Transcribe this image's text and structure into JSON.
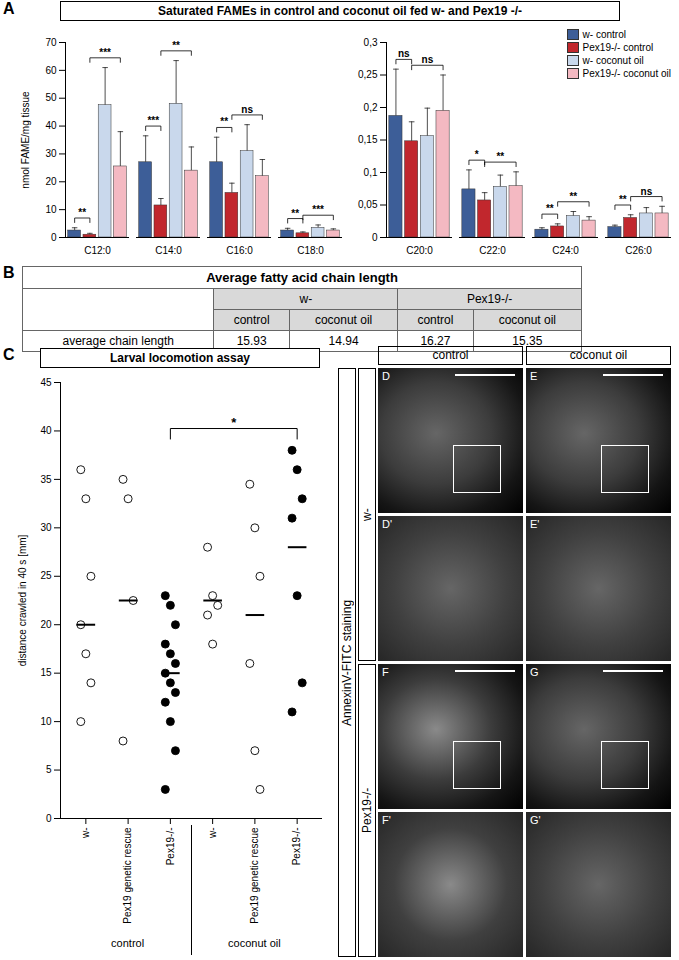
{
  "chart_data": [
    {
      "panel": "A",
      "type": "bar",
      "title": "Saturated FAMEs in control and coconut oil fed w- and Pex19 -/-",
      "ylabel": "nmol FAME/mg tissue",
      "categories": [
        "C12:0",
        "C14:0",
        "C16:0",
        "C18:0"
      ],
      "series": [
        {
          "name": "w- control",
          "color": "#3d5e98",
          "values": [
            2.5,
            27,
            27,
            2.5
          ],
          "errors": [
            1.0,
            9.5,
            9,
            0.8
          ]
        },
        {
          "name": "Pex19-/- control",
          "color": "#c1272d",
          "values": [
            1.0,
            11.5,
            16,
            1.5
          ],
          "errors": [
            0.5,
            2.5,
            3.5,
            0.5
          ]
        },
        {
          "name": "w- coconut oil",
          "color": "#c9d8ec",
          "values": [
            47.5,
            48,
            31,
            3.5
          ],
          "errors": [
            13.5,
            15.5,
            9.5,
            1.0
          ]
        },
        {
          "name": "Pex19-/- coconut oil",
          "color": "#f4b9c2",
          "values": [
            25.5,
            24,
            22,
            2.5
          ],
          "errors": [
            12.5,
            8.5,
            6,
            0.6
          ]
        }
      ],
      "ylim": [
        0,
        70
      ],
      "yticks": [
        0,
        10,
        20,
        30,
        40,
        50,
        60,
        70
      ],
      "annotations": [
        {
          "category": "C12:0",
          "from": "w- control",
          "to": "Pex19-/- control",
          "label": "**"
        },
        {
          "category": "C12:0",
          "from": "Pex19-/- control",
          "to": "Pex19-/- coconut oil",
          "label": "***"
        },
        {
          "category": "C14:0",
          "from": "w- control",
          "to": "Pex19-/- control",
          "label": "***"
        },
        {
          "category": "C14:0",
          "from": "Pex19-/- control",
          "to": "Pex19-/- coconut oil",
          "label": "**"
        },
        {
          "category": "C16:0",
          "from": "w- control",
          "to": "Pex19-/- control",
          "label": "**"
        },
        {
          "category": "C16:0",
          "from": "Pex19-/- control",
          "to": "Pex19-/- coconut oil",
          "label": "ns"
        },
        {
          "category": "C18:0",
          "from": "w- control",
          "to": "Pex19-/- control",
          "label": "**"
        },
        {
          "category": "C18:0",
          "from": "Pex19-/- control",
          "to": "Pex19-/- coconut oil",
          "label": "***"
        }
      ]
    },
    {
      "type": "bar",
      "categories": [
        "C20:0",
        "C22:0",
        "C24:0",
        "C26:0"
      ],
      "series": [
        {
          "name": "w- control",
          "color": "#3d5e98",
          "values": [
            0.187,
            0.074,
            0.012,
            0.016
          ],
          "errors": [
            0.072,
            0.03,
            0.003,
            0.003
          ]
        },
        {
          "name": "Pex19-/- control",
          "color": "#c1272d",
          "values": [
            0.148,
            0.057,
            0.017,
            0.03
          ],
          "errors": [
            0.03,
            0.012,
            0.004,
            0.005
          ]
        },
        {
          "name": "w- coconut oil",
          "color": "#c9d8ec",
          "values": [
            0.156,
            0.078,
            0.033,
            0.037
          ],
          "errors": [
            0.043,
            0.018,
            0.007,
            0.009
          ]
        },
        {
          "name": "Pex19-/- coconut oil",
          "color": "#f4b9c2",
          "values": [
            0.195,
            0.079,
            0.026,
            0.037
          ],
          "errors": [
            0.055,
            0.022,
            0.006,
            0.011
          ]
        }
      ],
      "ylim": [
        0,
        0.3
      ],
      "yticks": [
        0,
        {
          "value": 0.05,
          "label": "0,05"
        },
        {
          "value": 0.1,
          "label": "0,1"
        },
        {
          "value": 0.15,
          "label": "0,15"
        },
        {
          "value": 0.2,
          "label": "0,2"
        },
        {
          "value": 0.25,
          "label": "0,25"
        },
        {
          "value": 0.3,
          "label": "0,3"
        }
      ],
      "legend": "top-right",
      "annotations": [
        {
          "category": "C20:0",
          "from": "w- control",
          "to": "Pex19-/- control",
          "label": "ns"
        },
        {
          "category": "C20:0",
          "from": "Pex19-/- control",
          "to": "Pex19-/- coconut oil",
          "label": "ns"
        },
        {
          "category": "C22:0",
          "from": "w- control",
          "to": "Pex19-/- control",
          "label": "*"
        },
        {
          "category": "C22:0",
          "from": "Pex19-/- control",
          "to": "Pex19-/- coconut oil",
          "label": "**"
        },
        {
          "category": "C24:0",
          "from": "w- control",
          "to": "Pex19-/- control",
          "label": "**"
        },
        {
          "category": "C24:0",
          "from": "Pex19-/- control",
          "to": "Pex19-/- coconut oil",
          "label": "**"
        },
        {
          "category": "C26:0",
          "from": "w- control",
          "to": "Pex19-/- control",
          "label": "**"
        },
        {
          "category": "C26:0",
          "from": "Pex19-/- control",
          "to": "Pex19-/- coconut oil",
          "label": "ns"
        }
      ]
    },
    {
      "panel": "C",
      "type": "strip",
      "title": "Larval locomotion assay",
      "ylabel": "distance crawled in 40 s [mm]",
      "groups": [
        {
          "label": "control",
          "categories": [
            "w-",
            "Pex19 genetic rescue",
            "Pex19-/-"
          ]
        },
        {
          "label": "coconut oil",
          "categories": [
            "w-",
            "Pex19 genetic rescue",
            "Pex19-/-"
          ]
        }
      ],
      "series": [
        {
          "marker": "open circle",
          "color": "#000000",
          "values": [
            [
              36,
              33,
              25,
              20,
              17,
              14,
              10
            ],
            [
              35,
              33,
              22.5,
              8
            ],
            null,
            [
              28,
              23,
              22,
              21,
              18
            ],
            [
              34.5,
              30,
              25,
              16,
              7,
              3
            ],
            null
          ]
        },
        {
          "marker": "filled circle",
          "color": "#000000",
          "values": [
            null,
            null,
            [
              23,
              22,
              20,
              18,
              17,
              16,
              15,
              14,
              13,
              12,
              10,
              7,
              3
            ],
            null,
            null,
            [
              38,
              36,
              33,
              31,
              23,
              14,
              11
            ]
          ]
        }
      ],
      "means": [
        20,
        22.5,
        15,
        22.5,
        21,
        28
      ],
      "ylim": [
        0,
        45
      ],
      "yticks": [
        0,
        5,
        10,
        15,
        20,
        25,
        30,
        35,
        40,
        45
      ],
      "annotations": [
        {
          "category": "Pex19-/-",
          "from": "control",
          "to": "coconut oil",
          "label": "*"
        }
      ]
    }
  ],
  "table": {
    "panel": "B",
    "title": "Average fatty acid chain length",
    "columns": [
      {
        "genotype": "w-",
        "conditions": [
          "control",
          "coconut oil"
        ]
      },
      {
        "genotype": "Pex19-/-",
        "conditions": [
          "control",
          "coconut oil"
        ]
      }
    ],
    "rows": [
      {
        "label": "average chain length",
        "values": [
          15.93,
          14.94,
          16.27,
          15.35
        ]
      }
    ]
  },
  "images": {
    "title": "AnnexinV-FITC staining",
    "columns": [
      "control",
      "coconut oil"
    ],
    "rows": [
      {
        "label": "w-",
        "panels": [
          [
            "D",
            "E"
          ],
          [
            "D'",
            "E'"
          ]
        ]
      },
      {
        "label": "Pex19-/-",
        "panels": [
          [
            "F",
            "G"
          ],
          [
            "F'",
            "G'"
          ]
        ]
      }
    ]
  }
}
